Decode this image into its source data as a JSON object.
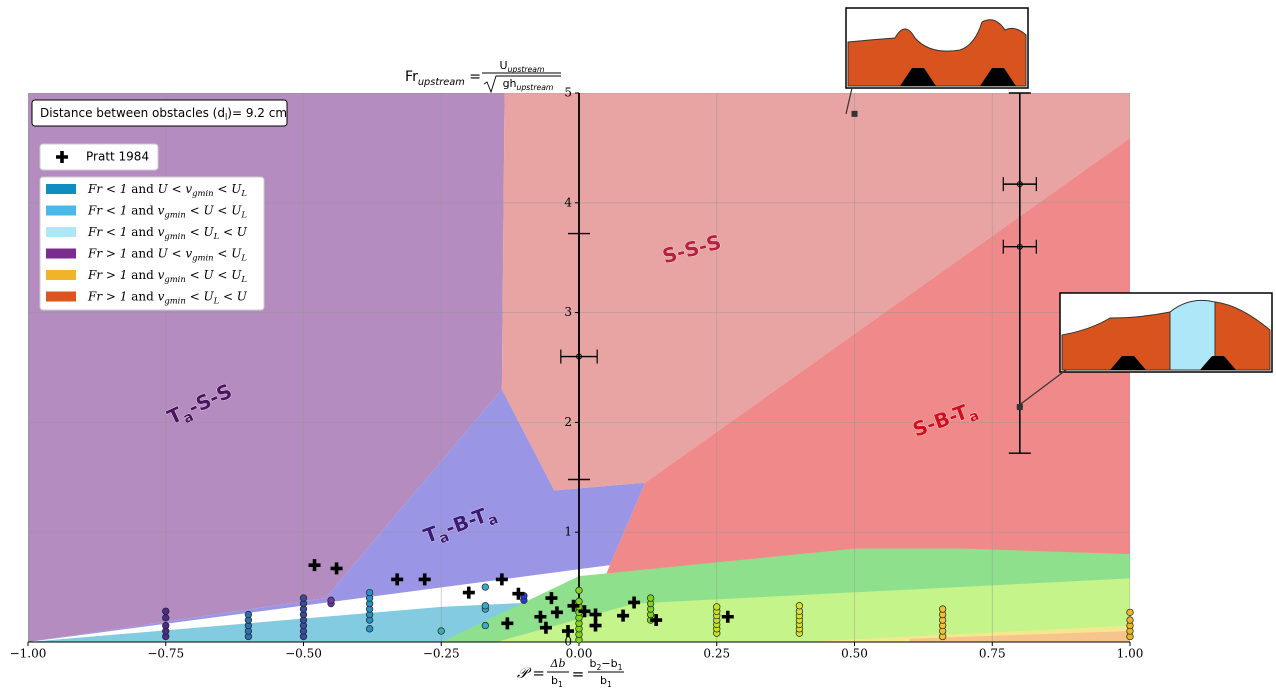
{
  "chart_data": {
    "type": "scatter",
    "title": {
      "lhs": [
        {
          "t": "Fr"
        },
        {
          "t": "upstream",
          "sub": true,
          "italic": true
        },
        {
          "t": " = "
        }
      ],
      "numerator": [
        {
          "t": "U"
        },
        {
          "t": "upstream",
          "sub": true,
          "italic": true
        }
      ],
      "denominator": [
        {
          "t": "gh"
        },
        {
          "t": "upstream",
          "sub": true,
          "italic": true
        }
      ]
    },
    "x_label": {
      "lhs": [
        {
          "t": "𝒫 = ",
          "italic": true
        }
      ],
      "frac1_num": [
        {
          "t": "Δb",
          "italic": true
        }
      ],
      "frac1_den": [
        {
          "t": "b"
        },
        {
          "t": "1",
          "sub": true
        }
      ],
      "mid": [
        {
          "t": " = "
        }
      ],
      "frac2_num": [
        {
          "t": "b"
        },
        {
          "t": "2",
          "sub": true
        },
        {
          "t": "−b"
        },
        {
          "t": "1",
          "sub": true
        }
      ],
      "frac2_den": [
        {
          "t": "b"
        },
        {
          "t": "1",
          "sub": true
        }
      ]
    },
    "annotation": [
      {
        "t": "Distance between obstacles (d"
      },
      {
        "t": "l",
        "sub": true
      },
      {
        "t": ")= 9.2 cm"
      }
    ],
    "xlim": [
      -1,
      1
    ],
    "ylim": [
      0,
      5
    ],
    "xticks": [
      {
        "value": -1,
        "label": "−1.00"
      },
      {
        "value": -0.75,
        "label": "−0.75"
      },
      {
        "value": -0.5,
        "label": "−0.50"
      },
      {
        "value": -0.25,
        "label": "−0.25"
      },
      {
        "value": 0,
        "label": "0.00"
      },
      {
        "value": 0.25,
        "label": "0.25"
      },
      {
        "value": 0.5,
        "label": "0.50"
      },
      {
        "value": 0.75,
        "label": "0.75"
      },
      {
        "value": 1,
        "label": "1.00"
      }
    ],
    "yticks": [
      0,
      1,
      2,
      3,
      4,
      5
    ],
    "grid": true,
    "regions": [
      {
        "color": "#b48cbf",
        "label": [
          {
            "t": "T"
          },
          {
            "t": "a",
            "sub": true
          },
          {
            "t": "-S-S"
          }
        ],
        "label_color": "#4a1460",
        "x": [
          -1,
          -1,
          -0.135,
          -0.14,
          -0.46
        ],
        "y": [
          0,
          5,
          5,
          2.3,
          0.4
        ]
      },
      {
        "color": "#e8a3a3",
        "label": [
          {
            "t": "S-S-S"
          }
        ],
        "label_color": "#b82040",
        "x": [
          -0.135,
          1,
          1,
          0.12,
          -0.045,
          -0.14
        ],
        "y": [
          5,
          5,
          4.59,
          1.45,
          1.38,
          2.3
        ]
      },
      {
        "color": "#f08a8a",
        "label": [
          {
            "t": "S-B-T"
          },
          {
            "t": "a",
            "sub": true
          }
        ],
        "label_color": "#d0101e",
        "x": [
          0.12,
          1,
          1,
          0,
          0.056
        ],
        "y": [
          1.45,
          4.59,
          0,
          0,
          0.7
        ]
      },
      {
        "color": "#9a95e4",
        "label": [
          {
            "t": "T"
          },
          {
            "t": "a",
            "sub": true
          },
          {
            "t": "-B-T"
          },
          {
            "t": "a",
            "sub": true
          }
        ],
        "label_color": "#3a1a72",
        "x": [
          -0.14,
          -0.045,
          0.12,
          0.056,
          -1,
          -0.46
        ],
        "y": [
          2.3,
          1.38,
          1.45,
          0.7,
          0,
          0.4
        ]
      },
      {
        "color": "#82cbe0",
        "x": [
          -1,
          -0.25,
          0,
          0
        ],
        "y": [
          0,
          0.32,
          0.38,
          0
        ]
      },
      {
        "color": "#8fe08c",
        "x": [
          -0.25,
          0,
          0.5,
          0.7,
          1,
          1
        ],
        "y": [
          0,
          0.6,
          0.85,
          0.85,
          0.8,
          0
        ]
      },
      {
        "color": "#c4f48a",
        "x": [
          -0.15,
          0.1,
          1,
          1
        ],
        "y": [
          0,
          0.35,
          0.58,
          0
        ]
      },
      {
        "color": "#f4e88e",
        "x": [
          0.4,
          1,
          1
        ],
        "y": [
          0,
          0.15,
          0
        ]
      },
      {
        "color": "#f8c48e",
        "x": [
          0.6,
          1,
          1,
          0.6
        ],
        "y": [
          0.03,
          0.1,
          0,
          0
        ]
      }
    ],
    "points": [
      {
        "x": -0.75,
        "y": [
          0.05,
          0.1,
          0.15,
          0.22,
          0.28
        ],
        "color": "#4a2a8a"
      },
      {
        "x": -0.6,
        "y": [
          0.05,
          0.1,
          0.15,
          0.2,
          0.25
        ],
        "color": "#2e6fb0"
      },
      {
        "x": -0.5,
        "y": [
          0.05,
          0.1,
          0.15,
          0.2,
          0.25,
          0.3,
          0.35,
          0.4
        ],
        "color": "#3a4a9e"
      },
      {
        "x": -0.45,
        "y": [
          0.35,
          0.38
        ],
        "color": "#6a3a9a"
      },
      {
        "x": -0.38,
        "y": [
          0.12,
          0.2,
          0.25,
          0.3,
          0.35,
          0.4,
          0.45
        ],
        "color": "#2a90c0"
      },
      {
        "x": -0.25,
        "y": [
          0.1
        ],
        "color": "#3ab0a0"
      },
      {
        "x": -0.17,
        "y": [
          0.15,
          0.3,
          0.33,
          0.5
        ],
        "color": "#3aa8c8"
      },
      {
        "x": -0.1,
        "y": [
          0.38,
          0.42
        ],
        "color": "#2a3ad0"
      },
      {
        "x": 0,
        "y": [
          0.02,
          0.07,
          0.12,
          0.17,
          0.22,
          0.27,
          0.32,
          0.37,
          0.47
        ],
        "color": "#7ed321"
      },
      {
        "x": 0.13,
        "y": [
          0.2,
          0.25,
          0.3,
          0.35,
          0.4
        ],
        "color": "#7ed321"
      },
      {
        "x": 0.25,
        "y": [
          0.08,
          0.12,
          0.16,
          0.2,
          0.24,
          0.28,
          0.32
        ],
        "color": "#c8e028"
      },
      {
        "x": 0.4,
        "y": [
          0.08,
          0.12,
          0.16,
          0.2,
          0.24,
          0.28,
          0.33
        ],
        "color": "#d8e030"
      },
      {
        "x": 0.66,
        "y": [
          0.05,
          0.1,
          0.15,
          0.2,
          0.25,
          0.3
        ],
        "color": "#f0c030"
      },
      {
        "x": 1,
        "y": [
          0.05,
          0.1,
          0.15,
          0.2,
          0.27
        ],
        "color": "#e8b828"
      }
    ],
    "pratt": {
      "name": "Pratt 1984",
      "color": "#000000",
      "x": [
        -0.48,
        -0.44,
        -0.33,
        -0.28,
        -0.2,
        -0.14,
        -0.11,
        -0.13,
        -0.07,
        -0.05,
        -0.06,
        -0.04,
        -0.01,
        0.01,
        -0.02,
        0.03,
        0.03,
        0.08,
        0.1,
        0.14,
        0.27
      ],
      "y": [
        0.7,
        0.67,
        0.57,
        0.57,
        0.45,
        0.57,
        0.44,
        0.17,
        0.23,
        0.4,
        0.13,
        0.27,
        0.33,
        0.28,
        0.1,
        0.25,
        0.15,
        0.24,
        0.36,
        0.2,
        0.23
      ]
    },
    "errorbars": [
      {
        "x": 0,
        "y": 2.6,
        "xerr": 0.033,
        "yerr_low": 1.12,
        "yerr_high": 1.12
      },
      {
        "x": 0.8,
        "y": 4.17,
        "xerr": 0.03,
        "yerr_low": 0,
        "yerr_high": 0
      },
      {
        "x": 0.8,
        "y": 3.6,
        "xerr": 0.03,
        "yerr_low": 0,
        "yerr_high": 0
      },
      {
        "x": 0.8,
        "y": 2.14,
        "xerr": 0,
        "yerr_low": 0.42,
        "yerr_high": 2.86
      }
    ],
    "inset_points": {
      "x": [
        0.5,
        0.8
      ],
      "y": [
        4.81,
        2.14
      ]
    },
    "legend": [
      {
        "color": "#0f8dc0",
        "label": [
          {
            "t": "Fr < 1",
            "italic": true
          },
          {
            "t": " and "
          },
          {
            "t": "U < v",
            "italic": true
          },
          {
            "t": "gmin",
            "sub": true,
            "italic": true
          },
          {
            "t": " < U",
            "italic": true
          },
          {
            "t": "L",
            "sub": true,
            "italic": true
          }
        ]
      },
      {
        "color": "#4bb8ea",
        "label": [
          {
            "t": "Fr < 1",
            "italic": true
          },
          {
            "t": " and "
          },
          {
            "t": "v",
            "italic": true
          },
          {
            "t": "gmin",
            "sub": true,
            "italic": true
          },
          {
            "t": " < U < U",
            "italic": true
          },
          {
            "t": "L",
            "sub": true,
            "italic": true
          }
        ]
      },
      {
        "color": "#aee8f8",
        "label": [
          {
            "t": "Fr < 1",
            "italic": true
          },
          {
            "t": " and "
          },
          {
            "t": "v",
            "italic": true
          },
          {
            "t": "gmin",
            "sub": true,
            "italic": true
          },
          {
            "t": " < U",
            "italic": true
          },
          {
            "t": "L",
            "sub": true,
            "italic": true
          },
          {
            "t": " < U",
            "italic": true
          }
        ]
      },
      {
        "color": "#7b2d8f",
        "label": [
          {
            "t": "Fr > 1",
            "italic": true
          },
          {
            "t": " and "
          },
          {
            "t": "U < v",
            "italic": true
          },
          {
            "t": "gmin",
            "sub": true,
            "italic": true
          },
          {
            "t": " < U",
            "italic": true
          },
          {
            "t": "L",
            "sub": true,
            "italic": true
          }
        ]
      },
      {
        "color": "#f0b429",
        "label": [
          {
            "t": "Fr > 1",
            "italic": true
          },
          {
            "t": " and "
          },
          {
            "t": "v",
            "italic": true
          },
          {
            "t": "gmin",
            "sub": true,
            "italic": true
          },
          {
            "t": " < U < U",
            "italic": true
          },
          {
            "t": "L",
            "sub": true,
            "italic": true
          }
        ]
      },
      {
        "color": "#dc5520",
        "label": [
          {
            "t": "Fr > 1",
            "italic": true
          },
          {
            "t": " and "
          },
          {
            "t": "v",
            "italic": true
          },
          {
            "t": "gmin",
            "sub": true,
            "italic": true
          },
          {
            "t": " < U",
            "italic": true
          },
          {
            "t": "L",
            "sub": true,
            "italic": true
          },
          {
            "t": " < U",
            "italic": true
          }
        ]
      }
    ]
  }
}
